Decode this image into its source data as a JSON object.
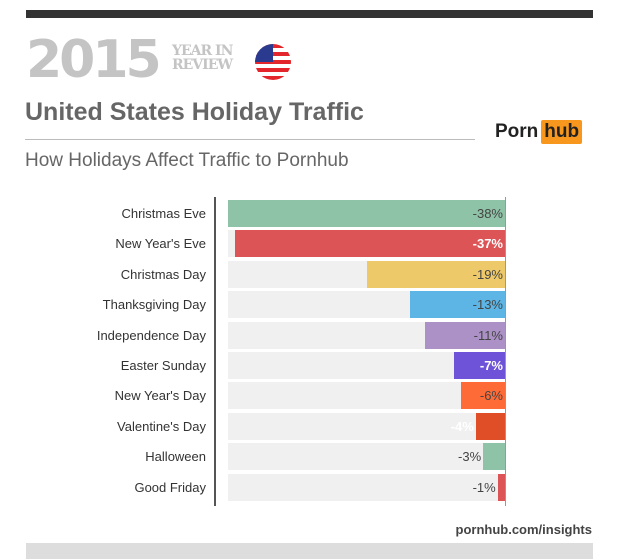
{
  "header": {
    "year": "2015",
    "year_in_review": [
      "YEAR IN",
      "REVIEW"
    ],
    "title": "United States Holiday Traffic",
    "subtitle": "How Holidays Affect Traffic to Pornhub",
    "logo": [
      "Porn",
      "hub"
    ]
  },
  "footer": "pornhub.com/insights",
  "chart_data": {
    "type": "bar",
    "orientation": "horizontal",
    "unit": "%",
    "categories": [
      "Christmas Eve",
      "New Year's Eve",
      "Christmas Day",
      "Thanksgiving Day",
      "Independence Day",
      "Easter Sunday",
      "New Year's Day",
      "Valentine's Day",
      "Halloween",
      "Good Friday"
    ],
    "values": [
      -38,
      -37,
      -19,
      -13,
      -11,
      -7,
      -6,
      -4,
      -3,
      -1
    ],
    "labels": [
      "-38%",
      "-37%",
      "-19%",
      "-13%",
      "-11%",
      "-7%",
      "-6%",
      "-4%",
      "-3%",
      "-1%"
    ],
    "colors": [
      "#8fc3a7",
      "#dd5457",
      "#eec96a",
      "#5cb5e5",
      "#ab91c6",
      "#6e52d8",
      "#ff6b37",
      "#e04e28",
      "#8fc3a7",
      "#dd5457"
    ],
    "label_colors": [
      "#444",
      "#fff",
      "#444",
      "#444",
      "#444",
      "#fff",
      "#444",
      "#fff",
      "#444",
      "#444"
    ],
    "xlim": [
      -38,
      0
    ]
  }
}
